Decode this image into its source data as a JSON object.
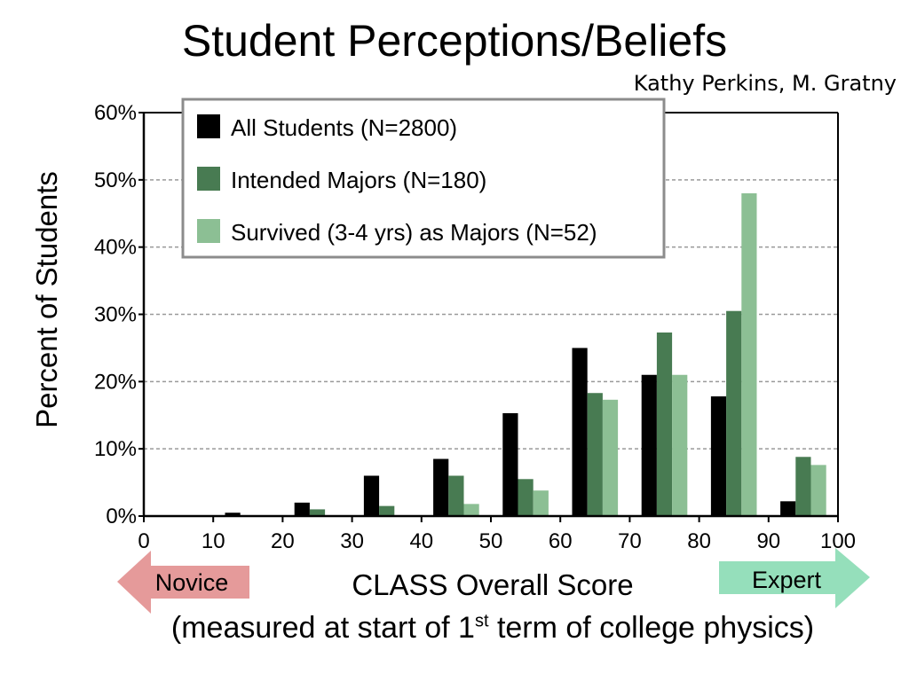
{
  "slide": {
    "title": "Student Perceptions/Beliefs",
    "credit": "Kathy Perkins, M. Gratny",
    "caption_before": "(measured at start of 1",
    "caption_sup": "st",
    "caption_after": " term of college physics)"
  },
  "arrows": {
    "novice": {
      "label": "Novice",
      "color": "#e59a9a"
    },
    "expert": {
      "label": "Expert",
      "color": "#95dfbb"
    }
  },
  "chart_data": {
    "type": "bar",
    "title": "",
    "xlabel": "CLASS Overall Score",
    "ylabel": "Percent of Students",
    "xlim": [
      0,
      100
    ],
    "ylim": [
      0,
      60
    ],
    "x_ticks": [
      "0",
      "10",
      "20",
      "30",
      "40",
      "50",
      "60",
      "70",
      "80",
      "90",
      "100"
    ],
    "y_ticks": [
      "0%",
      "10%",
      "20%",
      "30%",
      "40%",
      "50%",
      "60%"
    ],
    "bin_starts": [
      0,
      10,
      20,
      30,
      40,
      50,
      60,
      70,
      80,
      90
    ],
    "grid": "horizontal dashed",
    "legend_position": "top-left",
    "series": [
      {
        "name": "All Students (N=2800)",
        "color": "#000000",
        "values": [
          0,
          0.5,
          2,
          6,
          8.5,
          15.3,
          25,
          21,
          17.8,
          2.2
        ]
      },
      {
        "name": "Intended Majors (N=180)",
        "color": "#487b52",
        "values": [
          0,
          0,
          1,
          1.5,
          6,
          5.5,
          18.3,
          27.3,
          30.5,
          8.8
        ]
      },
      {
        "name": "Survived (3-4 yrs) as Majors (N=52)",
        "color": "#8cbf94",
        "values": [
          0,
          0,
          0,
          0,
          1.8,
          3.8,
          17.3,
          21,
          48,
          7.6
        ]
      }
    ]
  }
}
